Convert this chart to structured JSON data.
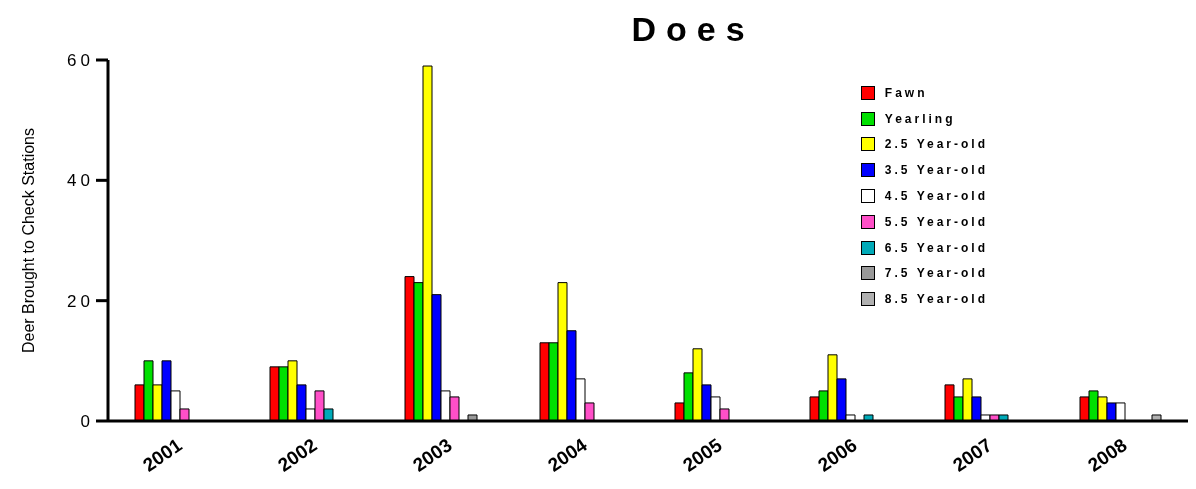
{
  "chart_data": {
    "type": "bar",
    "title": "Does",
    "ylabel": "Deer Brought to Check Stations",
    "categories": [
      "2001",
      "2002",
      "2003",
      "2004",
      "2005",
      "2006",
      "2007",
      "2008"
    ],
    "series": [
      {
        "name": "Fawn",
        "color": "#ff0000",
        "values": [
          6,
          9,
          24,
          13,
          3,
          4,
          6,
          4
        ]
      },
      {
        "name": "Yearling",
        "color": "#00e000",
        "values": [
          10,
          9,
          23,
          13,
          8,
          5,
          4,
          5
        ]
      },
      {
        "name": "2.5 Year-old",
        "color": "#ffff00",
        "values": [
          6,
          10,
          59,
          23,
          12,
          11,
          7,
          4
        ]
      },
      {
        "name": "3.5 Year-old",
        "color": "#0000ff",
        "values": [
          10,
          6,
          21,
          15,
          6,
          7,
          4,
          3
        ]
      },
      {
        "name": "4.5 Year-old",
        "color": "#ffffff",
        "values": [
          5,
          2,
          5,
          7,
          4,
          1,
          1,
          3
        ]
      },
      {
        "name": "5.5 Year-old",
        "color": "#ff4fc8",
        "values": [
          2,
          5,
          4,
          3,
          2,
          0,
          1,
          0
        ]
      },
      {
        "name": "6.5 Year-old",
        "color": "#00aab8",
        "values": [
          0,
          2,
          0,
          0,
          0,
          1,
          1,
          0
        ]
      },
      {
        "name": "7.5 Year-old",
        "color": "#999999",
        "values": [
          0,
          0,
          1,
          0,
          0,
          0,
          0,
          0
        ]
      },
      {
        "name": "8.5 Year-old",
        "color": "#b0b0b0",
        "values": [
          0,
          0,
          0,
          0,
          0,
          0,
          0,
          1
        ]
      }
    ],
    "ylim": [
      0,
      60
    ],
    "yticks": [
      0,
      20,
      40,
      60
    ],
    "grid": false,
    "legend": "top right"
  }
}
